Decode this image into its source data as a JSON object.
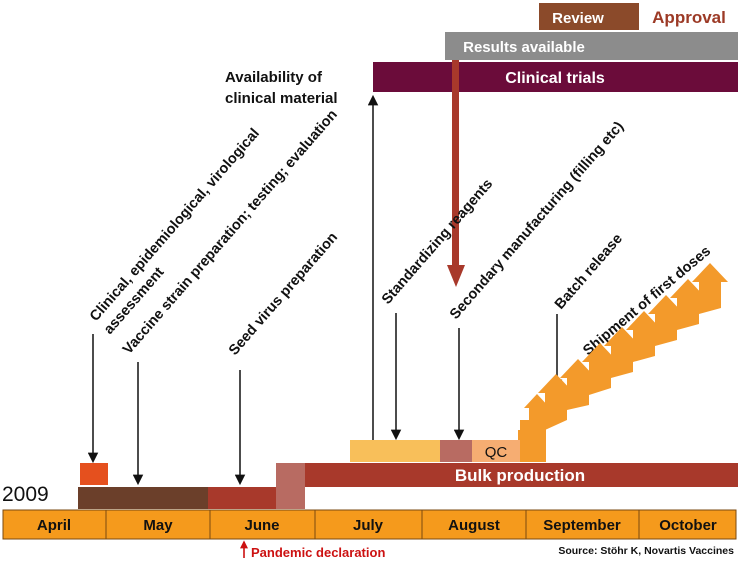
{
  "top": {
    "review": "Review",
    "approval": "Approval",
    "results_available": "Results available",
    "clinical_trials": "Clinical trials",
    "availability_line1": "Availability of",
    "availability_line2": "clinical material"
  },
  "labels": {
    "clinical_line1": "Clinical, epidemiological, virological",
    "clinical_line2": "assessment",
    "vaccine_strain": "Vaccine strain preparation; testing; evaluation",
    "seed_virus": "Seed virus preparation",
    "standardizing": "Standardizing reagents",
    "secondary": "Secondary manufacturing (filling etc)",
    "batch_release": "Batch release",
    "shipment": "Shipment of first doses"
  },
  "bars": {
    "qc": "QC",
    "bulk_production": "Bulk production"
  },
  "year": "2009",
  "months": [
    "April",
    "May",
    "June",
    "July",
    "August",
    "September",
    "October"
  ],
  "pandemic": "Pandemic declaration",
  "source": "Source: Stöhr K, Novartis Vaccines",
  "colors": {
    "timeline_fill": "#f59a1c",
    "review": "#8b4a2a",
    "approval_text": "#9c3a26",
    "results": "#8c8c8c",
    "clinical": "#6b0c3a",
    "bulk": "#a8392b",
    "early_dark": "#6b3f2a",
    "early_red": "#a8392b",
    "light_orange": "#f8bf5a",
    "qc_orange": "#f6ad72",
    "qc_brown": "#b86b62",
    "stair": "#f39a2b",
    "pandemic_red": "#cc1111"
  }
}
